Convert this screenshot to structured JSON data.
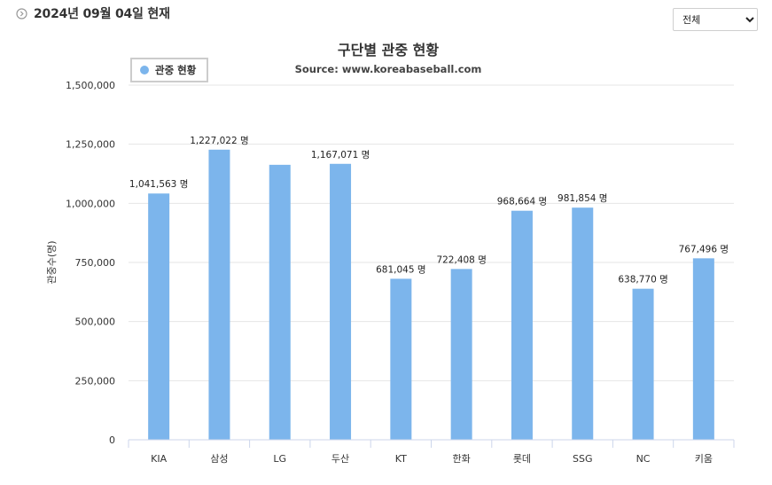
{
  "header": {
    "date_text": "2024년 09월 04일 현재"
  },
  "filter": {
    "options": [
      "전체"
    ],
    "selected": "전체"
  },
  "chart_data": {
    "type": "bar",
    "title": "구단별 관중 현황",
    "subtitle": "Source: www.koreabaseball.com",
    "ylabel": "관중수(명)",
    "xlabel": "",
    "legend": {
      "position": "top-left",
      "items": [
        "관중 현황"
      ]
    },
    "ylim": [
      0,
      1500000
    ],
    "yticks": [
      "0",
      "250,000",
      "500,000",
      "750,000",
      "1,000,000",
      "1,250,000",
      "1,500,000"
    ],
    "ytick_values": [
      0,
      250000,
      500000,
      750000,
      1000000,
      1250000,
      1500000
    ],
    "categories": [
      "KIA",
      "삼성",
      "LG",
      "두산",
      "KT",
      "한화",
      "롯데",
      "SSG",
      "NC",
      "키움"
    ],
    "series": [
      {
        "name": "관중 현황",
        "color": "#7cb5ec",
        "values": [
          1041563,
          1227022,
          1163000,
          1167071,
          681045,
          722408,
          968664,
          981854,
          638770,
          767496
        ],
        "labels": [
          "1,041,563 명",
          "1,227,022 명",
          "",
          "1,167,071 명",
          "681,045 명",
          "722,408 명",
          "968,664 명",
          "981,854 명",
          "638,770 명",
          "767,496 명"
        ]
      }
    ],
    "grid": true
  }
}
